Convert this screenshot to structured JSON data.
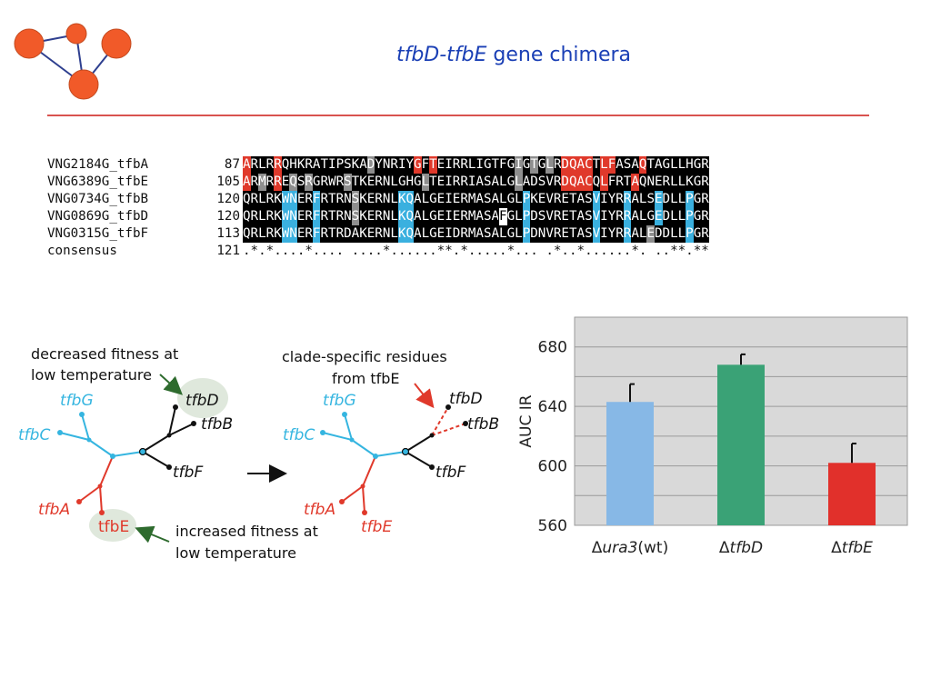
{
  "title": {
    "italic_part": "tfbD-tfbE",
    "rest": " gene chimera"
  },
  "alignment": {
    "rows": [
      {
        "name": "VNG2184G_tfbA",
        "start": "87",
        "seq": "ARLRRQHKRATIPSKADYNRIYGFTEIRRLIGTFGIGTGLRDQACTLFASAQTAGLLHGR",
        "cls": "rkkkrkkkkkkkkkkkgkkkkkrkrkkkkkkkkkkgkgkgkrrrrkrrkkkrkkkkkkkk"
      },
      {
        "name": "VNG6389G_tfbE",
        "start": "105",
        "seq": "ARMRREQSRGRWRSTKERNLGHGLTEIRRIASALGLADSVRDQACQLFRTAQNERLLKGR",
        "cls": "rkgkrkgkgkkkkgkkkkkkkkkgkkkkkkkkkkkgkkkkkrrrrkrkkkrkkkkkkkkk"
      },
      {
        "name": "VNG0734G_tfbB",
        "start": "120",
        "seq": "QRLRKWNERFRTRNSKERNLKQALGEIERMASALGLPKEVRETASVIYRRALSEDLLPGR",
        "cls": "kkkkkbbkkbkkkkgkkkkkbbkkkkkkkkkkkkkkbkkkkkkkkbkkkbkkkbkkkbkk"
      },
      {
        "name": "VNG0869G_tfbD",
        "start": "120",
        "seq": "QRLRKWNERFRTRNSKERNLKQALGEIERMASAFGLPDSVRETASVIYRRALGEDLLPGR",
        "cls": "kkkkkbbkkbkkkkgkkkkkbbkkkkkkkkkkkwkkbkkkkkkkkbkkkbkkkbkkkbkk"
      },
      {
        "name": "VNG0315G_tfbF",
        "start": "113",
        "seq": "QRLRKWNERFRTRDAKERNLKQALGEIDRMASALGLPDNVRETASVIYRRALEDDLLPGR",
        "cls": "kkkkkbbkkbkkkkkkkkkkbbkkkkkkkkkkkkkkbkkkkkkkkbkkkbkkgkkkkbkk"
      },
      {
        "name": "consensus",
        "start": "121",
        "seq": ".*.*....*.... ....*......**.*.....*... .*..*......*. ..**.**",
        "cls": ""
      }
    ]
  },
  "tree": {
    "annot_top": [
      "decreased fitness at",
      "low temperature"
    ],
    "annot_bottom": [
      "increased fitness at",
      "low temperature"
    ],
    "annot_mid": [
      "clade-specific residues",
      "from tfbE"
    ],
    "leaves": {
      "G": "tfbG",
      "C": "tfbC",
      "A": "tfbA",
      "E": "tfbE",
      "D": "tfbD",
      "B": "tfbB",
      "F": "tfbF"
    },
    "colors": {
      "blue": "#35b5e0",
      "red": "#e0392b",
      "black": "#111111",
      "green": "#2e6b2e",
      "ellipse": "#dfe8dc"
    }
  },
  "chart_data": {
    "type": "bar",
    "categories": [
      "Δura3(wt)",
      "ΔtfbD",
      "ΔtfbE"
    ],
    "category_parts": [
      [
        "Δ",
        "ura3",
        "(wt)"
      ],
      [
        "Δ",
        "tfbD",
        ""
      ],
      [
        "Δ",
        "tfbE",
        ""
      ]
    ],
    "values": [
      643,
      668,
      602
    ],
    "errors": [
      12,
      7,
      13
    ],
    "colors": [
      "#87b8e6",
      "#3aa276",
      "#e1302b"
    ],
    "ylabel": "AUC IR",
    "ylim": [
      560,
      700
    ],
    "yticks": [
      560,
      600,
      640,
      680
    ],
    "grid": true
  }
}
